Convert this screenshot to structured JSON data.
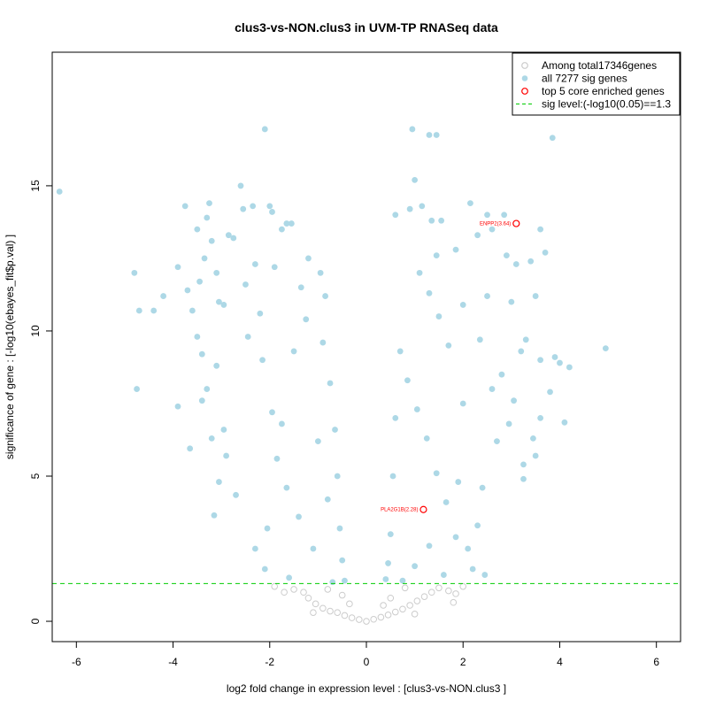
{
  "chart_data": {
    "type": "scatter",
    "title": "clus3-vs-NON.clus3 in UVM-TP RNASeq data",
    "xlabel": "log2 fold change in expression level : [clus3-vs-NON.clus3 ]",
    "ylabel": "significance of gene : [-log10(ebayes_fit$p.val) ]",
    "xlim": [
      -6.5,
      6.5
    ],
    "ylim": [
      -0.7,
      19.6
    ],
    "xticks": [
      -6,
      -4,
      -2,
      0,
      2,
      4,
      6
    ],
    "yticks": [
      0,
      5,
      10,
      15
    ],
    "sig_level": 1.3,
    "colors": {
      "nonsig": "#cccccc",
      "sig": "#add8e6",
      "top": "#ff0000",
      "sigline": "#00cc00"
    },
    "legend": {
      "position": "top-right",
      "entries": [
        {
          "label": "Among total17346genes",
          "symbol": "open-circle",
          "color": "#cccccc"
        },
        {
          "label": "all 7277 sig genes",
          "symbol": "filled-circle",
          "color": "#add8e6"
        },
        {
          "label": "top 5 core enriched genes",
          "symbol": "open-circle",
          "color": "#ff0000"
        },
        {
          "label": "sig level:(-log10(0.05)==1.3",
          "symbol": "dashed-line",
          "color": "#00cc00"
        }
      ]
    },
    "top_genes": [
      {
        "label": "ENPP2(3.64)",
        "x": 3.1,
        "y": 13.7
      },
      {
        "label": "PLA2G1B(2.28)",
        "x": 1.18,
        "y": 3.85
      }
    ],
    "sig_points": [
      [
        -6.35,
        14.8
      ],
      [
        -4.8,
        12.0
      ],
      [
        -4.7,
        10.7
      ],
      [
        -4.75,
        8.0
      ],
      [
        -4.4,
        10.7
      ],
      [
        -4.2,
        11.2
      ],
      [
        -3.9,
        12.2
      ],
      [
        -3.9,
        7.4
      ],
      [
        -3.75,
        14.3
      ],
      [
        -3.7,
        11.4
      ],
      [
        -3.6,
        10.7
      ],
      [
        -3.65,
        5.95
      ],
      [
        -3.5,
        13.5
      ],
      [
        -3.45,
        11.7
      ],
      [
        -3.35,
        12.5
      ],
      [
        -3.3,
        13.9
      ],
      [
        -3.25,
        14.4
      ],
      [
        -3.2,
        13.1
      ],
      [
        -3.15,
        3.65
      ],
      [
        -3.1,
        12.0
      ],
      [
        -3.05,
        11.0
      ],
      [
        -2.95,
        10.9
      ],
      [
        -2.85,
        13.3
      ],
      [
        -2.75,
        13.2
      ],
      [
        -2.6,
        15.0
      ],
      [
        -2.55,
        14.2
      ],
      [
        -2.35,
        14.3
      ],
      [
        -2.1,
        16.95
      ],
      [
        -2.0,
        14.3
      ],
      [
        -1.95,
        14.1
      ],
      [
        -1.75,
        13.5
      ],
      [
        -1.65,
        13.7
      ],
      [
        -1.55,
        13.7
      ],
      [
        -2.5,
        11.6
      ],
      [
        -2.3,
        12.3
      ],
      [
        -1.9,
        12.2
      ],
      [
        -1.35,
        11.5
      ],
      [
        -1.2,
        12.5
      ],
      [
        -0.95,
        12.0
      ],
      [
        -0.85,
        11.2
      ],
      [
        -3.5,
        9.8
      ],
      [
        -3.4,
        9.2
      ],
      [
        -3.1,
        8.8
      ],
      [
        -3.3,
        8.0
      ],
      [
        -2.95,
        6.6
      ],
      [
        -3.4,
        7.6
      ],
      [
        -3.2,
        6.3
      ],
      [
        -3.05,
        4.8
      ],
      [
        -2.9,
        5.7
      ],
      [
        -2.7,
        4.35
      ],
      [
        -1.95,
        7.2
      ],
      [
        -1.75,
        6.8
      ],
      [
        -1.5,
        9.3
      ],
      [
        -1.25,
        10.4
      ],
      [
        -0.9,
        9.6
      ],
      [
        -0.75,
        8.2
      ],
      [
        -0.65,
        6.6
      ],
      [
        -0.6,
        5.0
      ],
      [
        -0.55,
        3.2
      ],
      [
        -0.5,
        2.1
      ],
      [
        -0.45,
        1.4
      ],
      [
        -1.0,
        6.2
      ],
      [
        -0.8,
        4.2
      ],
      [
        -1.1,
        2.5
      ],
      [
        -1.4,
        3.6
      ],
      [
        -1.65,
        4.6
      ],
      [
        -1.85,
        5.6
      ],
      [
        -2.05,
        3.2
      ],
      [
        -2.3,
        2.5
      ],
      [
        -2.1,
        1.8
      ],
      [
        -1.6,
        1.5
      ],
      [
        -0.7,
        1.35
      ],
      [
        -2.15,
        9.0
      ],
      [
        -2.45,
        9.8
      ],
      [
        -2.2,
        10.6
      ],
      [
        0.95,
        16.95
      ],
      [
        1.45,
        16.75
      ],
      [
        1.3,
        16.75
      ],
      [
        1.0,
        15.2
      ],
      [
        0.9,
        14.2
      ],
      [
        0.6,
        14.0
      ],
      [
        1.15,
        14.3
      ],
      [
        1.35,
        13.8
      ],
      [
        1.55,
        13.8
      ],
      [
        2.15,
        14.4
      ],
      [
        2.5,
        14.0
      ],
      [
        2.85,
        14.0
      ],
      [
        3.85,
        16.65
      ],
      [
        3.6,
        13.5
      ],
      [
        3.7,
        12.7
      ],
      [
        3.4,
        12.4
      ],
      [
        3.1,
        12.3
      ],
      [
        2.9,
        12.6
      ],
      [
        2.6,
        13.5
      ],
      [
        2.3,
        13.3
      ],
      [
        1.85,
        12.8
      ],
      [
        1.45,
        12.6
      ],
      [
        1.1,
        12.0
      ],
      [
        3.5,
        11.2
      ],
      [
        3.0,
        11.0
      ],
      [
        2.5,
        11.2
      ],
      [
        2.0,
        10.9
      ],
      [
        3.3,
        9.7
      ],
      [
        3.9,
        9.1
      ],
      [
        4.0,
        8.9
      ],
      [
        4.2,
        8.75
      ],
      [
        4.95,
        9.4
      ],
      [
        3.6,
        9.0
      ],
      [
        3.2,
        9.3
      ],
      [
        2.8,
        8.5
      ],
      [
        4.1,
        6.85
      ],
      [
        3.6,
        7.0
      ],
      [
        3.45,
        6.3
      ],
      [
        3.5,
        5.7
      ],
      [
        3.25,
        5.4
      ],
      [
        3.25,
        4.9
      ],
      [
        2.95,
        6.8
      ],
      [
        2.7,
        6.2
      ],
      [
        2.4,
        4.6
      ],
      [
        2.3,
        3.3
      ],
      [
        2.1,
        2.5
      ],
      [
        2.2,
        1.8
      ],
      [
        2.45,
        1.6
      ],
      [
        1.85,
        2.9
      ],
      [
        1.65,
        4.1
      ],
      [
        1.45,
        5.1
      ],
      [
        1.25,
        6.3
      ],
      [
        1.05,
        7.3
      ],
      [
        0.85,
        8.3
      ],
      [
        0.7,
        9.3
      ],
      [
        0.6,
        7.0
      ],
      [
        0.55,
        5.0
      ],
      [
        0.5,
        3.0
      ],
      [
        0.45,
        2.0
      ],
      [
        0.4,
        1.45
      ],
      [
        0.75,
        1.4
      ],
      [
        1.0,
        1.9
      ],
      [
        1.3,
        2.6
      ],
      [
        1.6,
        1.6
      ],
      [
        1.9,
        4.8
      ],
      [
        2.0,
        7.5
      ],
      [
        1.7,
        9.5
      ],
      [
        1.5,
        10.5
      ],
      [
        1.3,
        11.3
      ],
      [
        2.35,
        9.7
      ],
      [
        2.6,
        8.0
      ],
      [
        3.05,
        7.6
      ],
      [
        3.8,
        7.9
      ]
    ],
    "nonsig_points": [
      [
        -1.5,
        1.1
      ],
      [
        -1.3,
        1.0
      ],
      [
        -1.2,
        0.8
      ],
      [
        -1.05,
        0.6
      ],
      [
        -0.9,
        0.45
      ],
      [
        -0.75,
        0.35
      ],
      [
        -0.6,
        0.3
      ],
      [
        -0.45,
        0.2
      ],
      [
        -0.3,
        0.12
      ],
      [
        -0.15,
        0.06
      ],
      [
        0.0,
        0.0
      ],
      [
        0.15,
        0.07
      ],
      [
        0.3,
        0.14
      ],
      [
        0.45,
        0.22
      ],
      [
        0.6,
        0.32
      ],
      [
        0.75,
        0.42
      ],
      [
        0.9,
        0.55
      ],
      [
        1.05,
        0.7
      ],
      [
        1.2,
        0.85
      ],
      [
        1.35,
        1.0
      ],
      [
        1.5,
        1.15
      ],
      [
        1.7,
        1.05
      ],
      [
        1.85,
        0.95
      ],
      [
        2.0,
        1.2
      ],
      [
        1.8,
        0.65
      ],
      [
        -1.7,
        1.0
      ],
      [
        -1.9,
        1.2
      ],
      [
        -0.5,
        0.9
      ],
      [
        0.5,
        0.8
      ],
      [
        -0.8,
        1.1
      ],
      [
        0.8,
        1.15
      ],
      [
        -1.1,
        0.3
      ],
      [
        1.0,
        0.25
      ],
      [
        -0.35,
        0.6
      ],
      [
        0.35,
        0.55
      ]
    ]
  }
}
